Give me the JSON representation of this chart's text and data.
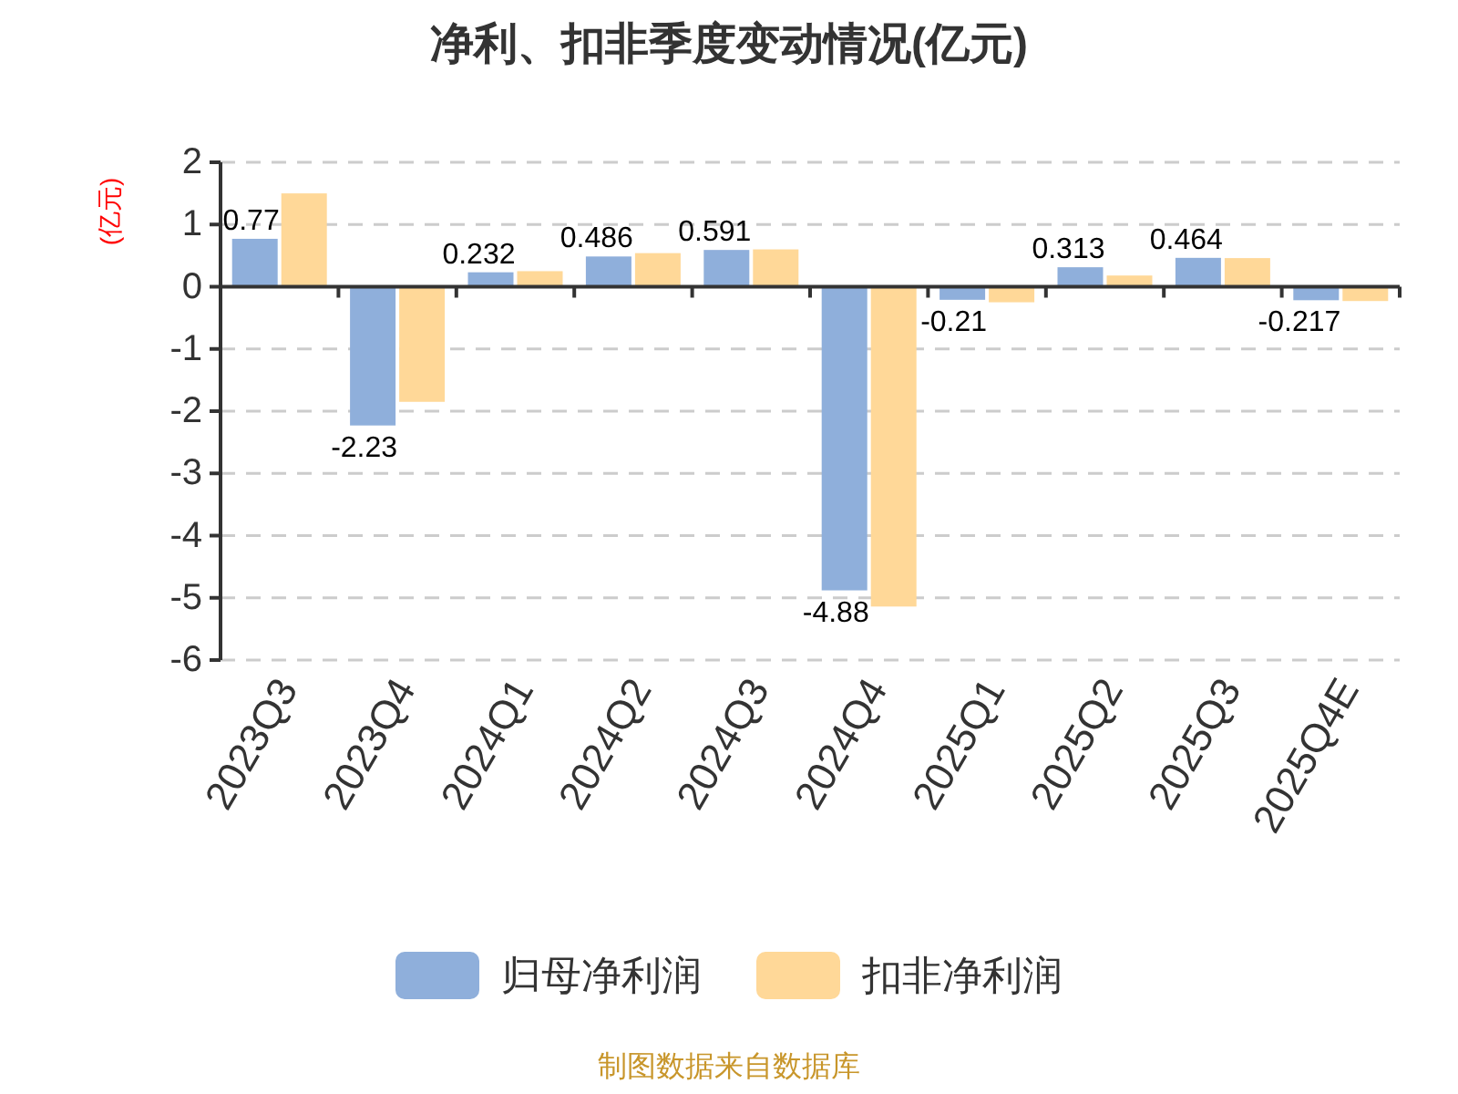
{
  "chart_data": {
    "type": "bar",
    "title": "净利、扣非季度变动情况(亿元)",
    "ylabel": "(亿元)",
    "categories": [
      "2023Q3",
      "2023Q4",
      "2024Q1",
      "2024Q2",
      "2024Q3",
      "2024Q4",
      "2025Q1",
      "2025Q2",
      "2025Q3",
      "2025Q4E"
    ],
    "series": [
      {
        "name": "归母净利润",
        "color": "#8fafdb",
        "values": [
          0.77,
          -2.23,
          0.232,
          0.486,
          0.591,
          -4.88,
          -0.21,
          0.313,
          0.464,
          -0.217
        ],
        "value_labels": [
          "0.77",
          "-2.23",
          "0.232",
          "0.486",
          "0.591",
          "-4.88",
          "-0.21",
          "0.313",
          "0.464",
          "-0.217"
        ]
      },
      {
        "name": "扣非净利润",
        "color": "#ffd898",
        "values": [
          1.5,
          -1.85,
          0.25,
          0.54,
          0.6,
          -5.14,
          -0.25,
          0.18,
          0.46,
          -0.23
        ]
      }
    ],
    "ylim": [
      -6,
      2
    ],
    "yticks": [
      -6,
      -5,
      -4,
      -3,
      -2,
      -1,
      0,
      1,
      2
    ],
    "grid": "y",
    "legend": "bottom",
    "annotations": [
      "制图数据来自数据库"
    ]
  }
}
